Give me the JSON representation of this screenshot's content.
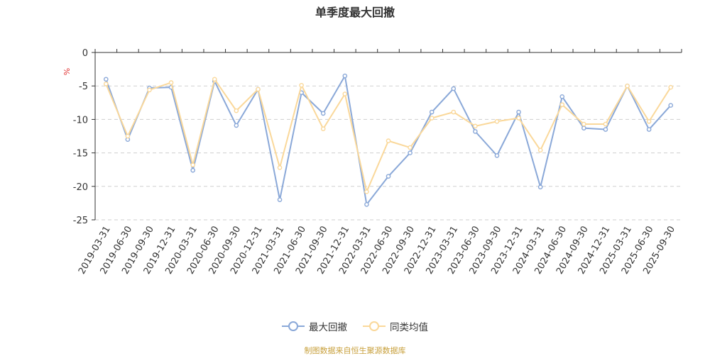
{
  "chart_data": {
    "type": "line",
    "title": "单季度最大回撤",
    "ylabel": "%",
    "xlabel": "",
    "ylim": [
      -25,
      0
    ],
    "yticks": [
      0,
      -5,
      -10,
      -15,
      -20,
      -25
    ],
    "grid": true,
    "legend_position": "bottom-center",
    "categories": [
      "2019-03-31",
      "2019-06-30",
      "2019-09-30",
      "2019-12-31",
      "2020-03-31",
      "2020-06-30",
      "2020-09-30",
      "2020-12-31",
      "2021-03-31",
      "2021-06-30",
      "2021-09-30",
      "2021-12-31",
      "2022-03-31",
      "2022-06-30",
      "2022-09-30",
      "2022-12-31",
      "2023-03-31",
      "2023-06-30",
      "2023-09-30",
      "2023-12-31",
      "2024-03-31",
      "2024-06-30",
      "2024-09-30",
      "2024-12-31",
      "2025-03-31",
      "2025-06-30",
      "2025-09-30"
    ],
    "series": [
      {
        "name": "最大回撤",
        "color": "#8aa8d8",
        "values": [
          -4.0,
          -13.0,
          -5.3,
          -5.2,
          -17.6,
          -4.3,
          -10.9,
          -5.5,
          -22.0,
          -6.0,
          -9.1,
          -3.5,
          -22.7,
          -18.5,
          -15.0,
          -8.9,
          -5.4,
          -11.8,
          -15.4,
          -8.9,
          -20.1,
          -6.6,
          -11.3,
          -11.5,
          -5.0,
          -11.5,
          -7.9
        ]
      },
      {
        "name": "同类均值",
        "color": "#fad89a",
        "values": [
          -4.7,
          -12.5,
          -5.6,
          -4.5,
          -16.8,
          -4.0,
          -8.7,
          -5.5,
          -17.2,
          -4.9,
          -11.4,
          -6.2,
          -20.8,
          -13.2,
          -14.2,
          -9.8,
          -8.9,
          -11.0,
          -10.3,
          -9.8,
          -14.6,
          -7.8,
          -10.7,
          -10.7,
          -5.0,
          -10.3,
          -5.2
        ]
      }
    ]
  },
  "footer": "制图数据来自恒生聚源数据库"
}
